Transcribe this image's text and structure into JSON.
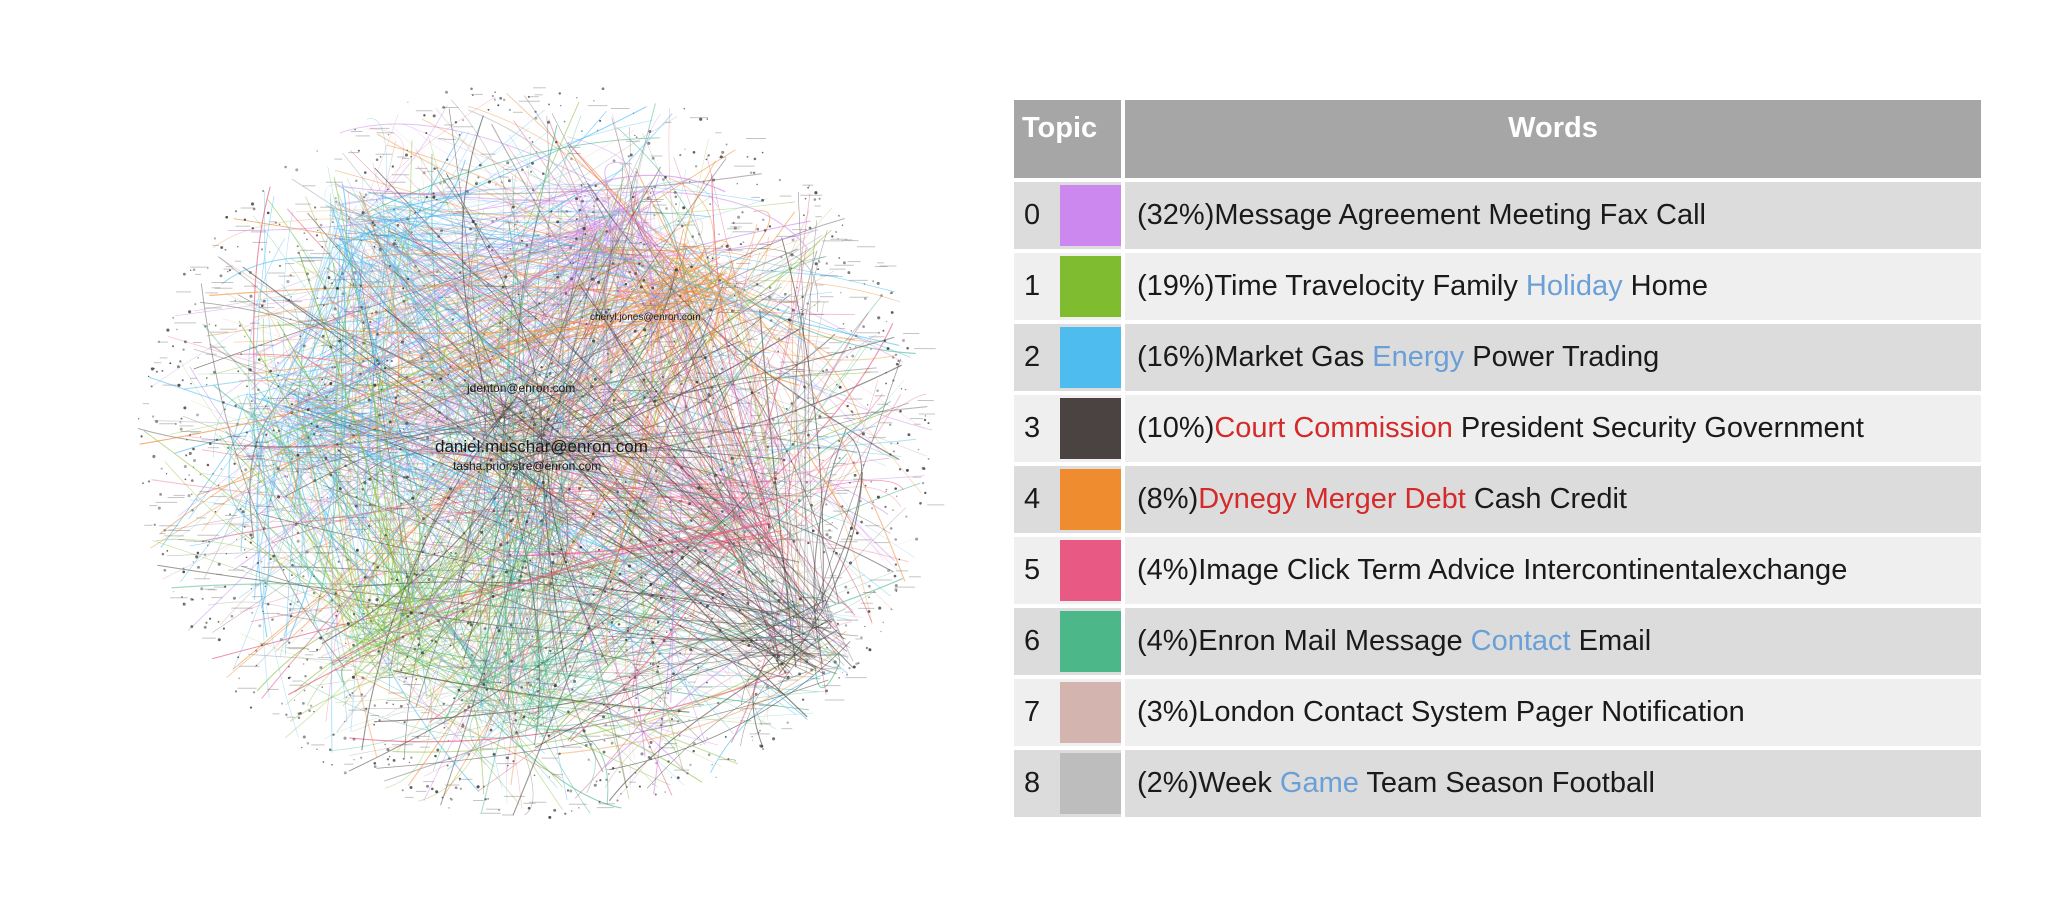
{
  "network": {
    "labels": [
      "daniel.muschar@enron.com",
      "jdenton@enron.com",
      "tasha.prior.stre@enron.com",
      "cheryl.jones@enron.com"
    ]
  },
  "table": {
    "header_topic": "Topic",
    "header_words": "Words",
    "rows": [
      {
        "topic": "0",
        "color": "#cc88ee",
        "words": [
          {
            "t": "(32%)Message Agreement Meeting Fax Call",
            "c": ""
          }
        ]
      },
      {
        "topic": "1",
        "color": "#7fbc2f",
        "words": [
          {
            "t": "(19%)Time Travelocity Family ",
            "c": ""
          },
          {
            "t": "Holiday",
            "c": "blue"
          },
          {
            "t": " Home",
            "c": ""
          }
        ]
      },
      {
        "topic": "2",
        "color": "#4fbcf0",
        "words": [
          {
            "t": "(16%)Market Gas ",
            "c": ""
          },
          {
            "t": "Energy",
            "c": "blue"
          },
          {
            "t": " Power Trading",
            "c": ""
          }
        ]
      },
      {
        "topic": "3",
        "color": "#4a4341",
        "words": [
          {
            "t": "(10%)",
            "c": ""
          },
          {
            "t": "Court Commission",
            "c": "red"
          },
          {
            "t": " President Security Government",
            "c": ""
          }
        ]
      },
      {
        "topic": "4",
        "color": "#f08c30",
        "words": [
          {
            "t": "(8%)",
            "c": ""
          },
          {
            "t": "Dynegy Merger Debt",
            "c": "red"
          },
          {
            "t": " Cash Credit",
            "c": ""
          }
        ]
      },
      {
        "topic": "5",
        "color": "#e85a84",
        "words": [
          {
            "t": "(4%)Image Click Term Advice Intercontinentalexchange",
            "c": ""
          }
        ]
      },
      {
        "topic": "6",
        "color": "#4cb88a",
        "words": [
          {
            "t": "(4%)Enron Mail Message ",
            "c": ""
          },
          {
            "t": "Contact",
            "c": "blue"
          },
          {
            "t": " Email",
            "c": ""
          }
        ]
      },
      {
        "topic": "7",
        "color": "#d4b4ae",
        "words": [
          {
            "t": "(3%)London Contact System Pager Notification",
            "c": ""
          }
        ]
      },
      {
        "topic": "8",
        "color": "#bdbdbd",
        "words": [
          {
            "t": "(2%)Week ",
            "c": ""
          },
          {
            "t": "Game",
            "c": "blue"
          },
          {
            "t": " Team Season Football",
            "c": ""
          }
        ]
      }
    ]
  }
}
